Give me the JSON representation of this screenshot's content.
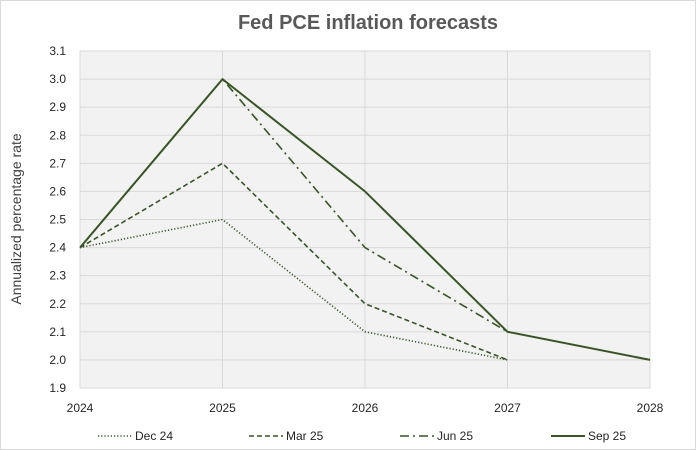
{
  "chart_data": {
    "type": "line",
    "title": "Fed PCE inflation forecasts",
    "xlabel": "",
    "ylabel": "Annualized percentage rate",
    "x": [
      2024,
      2025,
      2026,
      2027,
      2028
    ],
    "x_tick_labels": [
      "2024",
      "2025",
      "2026",
      "2027",
      "2028"
    ],
    "xlim": [
      2024,
      2028
    ],
    "ylim": [
      1.9,
      3.1
    ],
    "y_ticks": [
      1.9,
      2.0,
      2.1,
      2.2,
      2.3,
      2.4,
      2.5,
      2.6,
      2.7,
      2.8,
      2.9,
      3.0,
      3.1
    ],
    "y_tick_labels": [
      "1.9",
      "2.0",
      "2.1",
      "2.2",
      "2.3",
      "2.4",
      "2.5",
      "2.6",
      "2.7",
      "2.8",
      "2.9",
      "3.0",
      "3.1"
    ],
    "grid": "horizontal",
    "legend_position": "bottom",
    "series": [
      {
        "name": "Dec 24",
        "style": "dotted",
        "values": [
          2.4,
          2.5,
          2.1,
          2.0,
          null
        ]
      },
      {
        "name": "Mar 25",
        "style": "dashed",
        "values": [
          2.4,
          2.7,
          2.2,
          2.0,
          null
        ]
      },
      {
        "name": "Jun 25",
        "style": "dashdot",
        "values": [
          2.4,
          3.0,
          2.4,
          2.1,
          null
        ]
      },
      {
        "name": "Sep 25",
        "style": "solid",
        "values": [
          2.4,
          3.0,
          2.6,
          2.1,
          2.0
        ]
      }
    ],
    "colors": {
      "line": "#375623",
      "plot_bg": "#f2f2f2",
      "grid": "#d9d9d9",
      "border": "#d9d9d9"
    }
  }
}
